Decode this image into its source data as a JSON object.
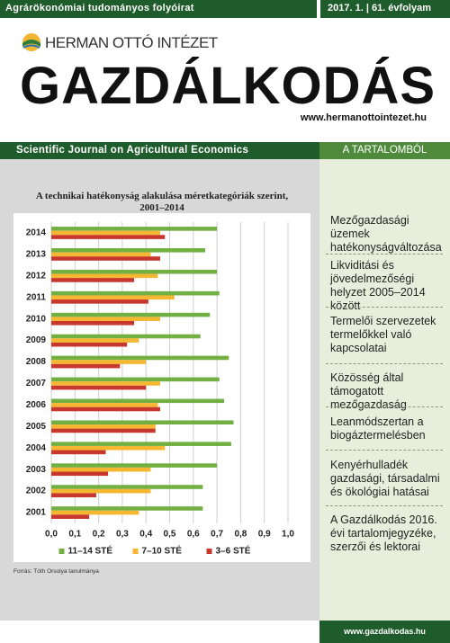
{
  "header": {
    "journal_type": "Agrárökonómiai tudományos folyóirat",
    "issue": "2017. 1. | 61. évfolyam",
    "publisher": "HERMAN OTTÓ INTÉZET",
    "title": "GAZDÁLKODÁS",
    "publisher_url": "www.hermanottointezet.hu",
    "subtitle": "Scientific Journal on Agricultural Economics",
    "contents_heading": "A TARTALOMBÓL"
  },
  "chart_data": {
    "type": "bar",
    "orientation": "horizontal",
    "title": "A technikai hatékonyság alakulása méretkategóriák szerint, 2001–2014",
    "categories": [
      "2014",
      "2013",
      "2012",
      "2011",
      "2010",
      "2009",
      "2008",
      "2007",
      "2006",
      "2005",
      "2004",
      "2003",
      "2002",
      "2001"
    ],
    "series": [
      {
        "name": "11–14 STÉ",
        "color": "#72b043",
        "values": [
          0.7,
          0.65,
          0.7,
          0.71,
          0.67,
          0.63,
          0.75,
          0.71,
          0.73,
          0.77,
          0.76,
          0.7,
          0.64,
          0.64
        ]
      },
      {
        "name": "7–10 STÉ",
        "color": "#f5b731",
        "values": [
          0.46,
          0.42,
          0.45,
          0.52,
          0.46,
          0.37,
          0.4,
          0.46,
          0.45,
          0.44,
          0.48,
          0.42,
          0.42,
          0.37
        ]
      },
      {
        "name": "3–6 STÉ",
        "color": "#c8372d",
        "values": [
          0.48,
          0.46,
          0.35,
          0.41,
          0.35,
          0.32,
          0.29,
          0.4,
          0.46,
          0.44,
          0.23,
          0.24,
          0.19,
          0.16
        ]
      }
    ],
    "xlim": [
      0,
      1
    ],
    "xticks": [
      {
        "value": 0,
        "label": "0,0"
      },
      {
        "value": 0.1,
        "label": "0,1"
      },
      {
        "value": 0.2,
        "label": "0,2"
      },
      {
        "value": 0.3,
        "label": "0,3"
      },
      {
        "value": 0.4,
        "label": "0,4"
      },
      {
        "value": 0.5,
        "label": "0,5"
      },
      {
        "value": 0.6,
        "label": "0,6"
      },
      {
        "value": 0.7,
        "label": "0,7"
      },
      {
        "value": 0.8,
        "label": "0,8"
      },
      {
        "value": 0.9,
        "label": "0,9"
      },
      {
        "value": 1,
        "label": "1,0"
      }
    ],
    "grid": true,
    "legend": "bottom",
    "source": "Forrás: Tóth Orsolya tanulmánya"
  },
  "contents": [
    "Mezőgazdasági üzemek hatékonyságváltozása",
    "Likviditási és jövedelmezőségi helyzet 2005–2014 között",
    "Termelői szervezetek termelőkkel való kapcsolatai",
    "Közösség által támogatott mezőgazdaság",
    "Leanmódszertan a biogáztermelésben",
    "Kenyérhulladék gazdasági, társadalmi és ökológiai hatásai",
    "A Gazdálkodás 2016. évi tartalomjegyzéke, szerzői és lektorai"
  ],
  "footer": {
    "url": "www.gazdalkodas.hu"
  }
}
